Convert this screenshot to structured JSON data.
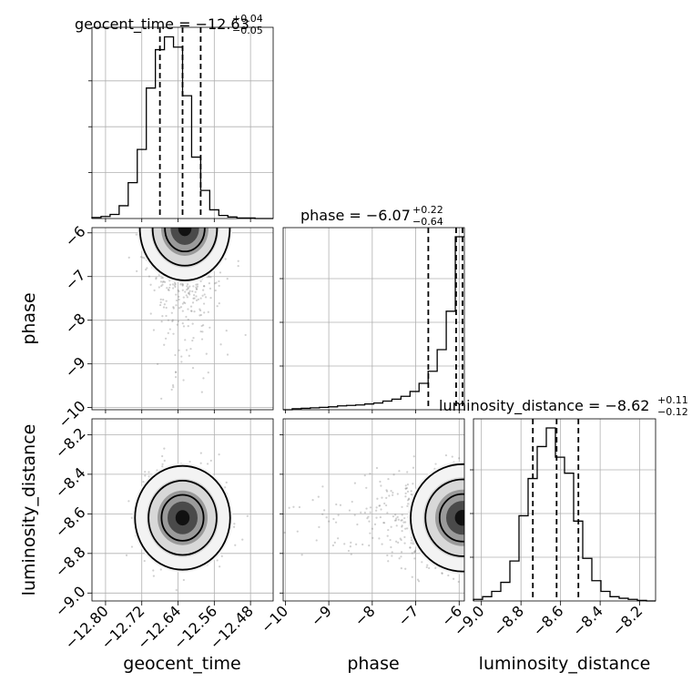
{
  "chart_data": {
    "type": "corner",
    "parameters": [
      "geocent_time",
      "phase",
      "luminosity_distance"
    ],
    "xlabels": [
      "geocent_time",
      "phase",
      "luminosity_distance"
    ],
    "ylabels": [
      "phase",
      "luminosity_distance"
    ],
    "grid": true,
    "panels": {
      "geocent_time": {
        "title": {
          "name": "geocent_time",
          "median": "−12.63",
          "plus": "+0.04",
          "minus": "−0.05"
        },
        "range": [
          -12.83,
          -12.43
        ],
        "ticks": [
          -12.8,
          -12.72,
          -12.64,
          -12.56,
          -12.48
        ],
        "tick_labels": [
          "−12.80",
          "−12.72",
          "−12.64",
          "−12.56",
          "−12.48"
        ],
        "quantiles": [
          -12.68,
          -12.63,
          -12.59
        ],
        "hist_edges_start": -12.83,
        "hist_bin_width": 0.02,
        "hist_counts": [
          2,
          4,
          8,
          25,
          70,
          135,
          255,
          330,
          355,
          335,
          240,
          120,
          55,
          17,
          6,
          3,
          1,
          1,
          0,
          0
        ]
      },
      "phase": {
        "title": {
          "name": "phase",
          "median": "−6.07",
          "plus": "+0.22",
          "minus": "−0.64"
        },
        "range": [
          -10.05,
          -5.88
        ],
        "ticks": [
          -10,
          -9,
          -8,
          -7,
          -6
        ],
        "tick_labels": [
          "−10",
          "−9",
          "−8",
          "−7",
          "−6"
        ],
        "quantiles": [
          -6.71,
          -6.07,
          -5.85
        ],
        "hist_edges_start": -10.05,
        "hist_bin_width": 0.2085,
        "hist_counts": [
          0,
          2,
          3,
          4,
          5,
          6,
          8,
          9,
          10,
          12,
          14,
          18,
          22,
          28,
          38,
          55,
          80,
          125,
          205,
          360
        ]
      },
      "luminosity_distance": {
        "title": {
          "name": "luminosity_distance",
          "median": "−8.62",
          "plus": "+0.11",
          "minus": "−0.12"
        },
        "range": [
          -9.04,
          -8.12
        ],
        "ticks": [
          -9.0,
          -8.8,
          -8.6,
          -8.4,
          -8.2
        ],
        "tick_labels": [
          "−9.0",
          "−8.8",
          "−8.6",
          "−8.4",
          "−8.2"
        ],
        "quantiles": [
          -8.74,
          -8.62,
          -8.51
        ],
        "hist_edges_start": -9.04,
        "hist_bin_width": 0.046,
        "hist_counts": [
          3,
          8,
          18,
          35,
          75,
          160,
          230,
          290,
          325,
          270,
          240,
          150,
          80,
          38,
          18,
          8,
          5,
          3,
          1,
          0
        ]
      }
    },
    "hist_titles_raw": {
      "geocent_time": "geocent_time = −12.63",
      "phase": "phase = −6.07",
      "luminosity_distance": "luminosity_distance = −8.62"
    },
    "phase_yticks": [
      -6,
      -7,
      -8,
      -9,
      -10
    ],
    "phase_ytick_labels": [
      "−6",
      "−7",
      "−8",
      "−9",
      "−10"
    ],
    "lumi_yticks": [
      -8.2,
      -8.4,
      -8.6,
      -8.8,
      -9.0
    ],
    "lumi_ytick_labels": [
      "−8.2",
      "−8.4",
      "−8.6",
      "−8.8",
      "−9.0"
    ],
    "joint": {
      "geocent_time_vs_phase": {
        "center": [
          -12.63,
          -5.95
        ],
        "spread": [
          0.035,
          0.5
        ],
        "contour_levels": 3
      },
      "geocent_time_vs_luminosity_distance": {
        "center": [
          -12.63,
          -8.62
        ],
        "spread": [
          0.04,
          0.11
        ],
        "contour_levels": 3
      },
      "phase_vs_luminosity_distance": {
        "center": [
          -5.95,
          -8.62
        ],
        "spread": [
          0.5,
          0.11
        ],
        "contour_levels": 3
      }
    }
  }
}
